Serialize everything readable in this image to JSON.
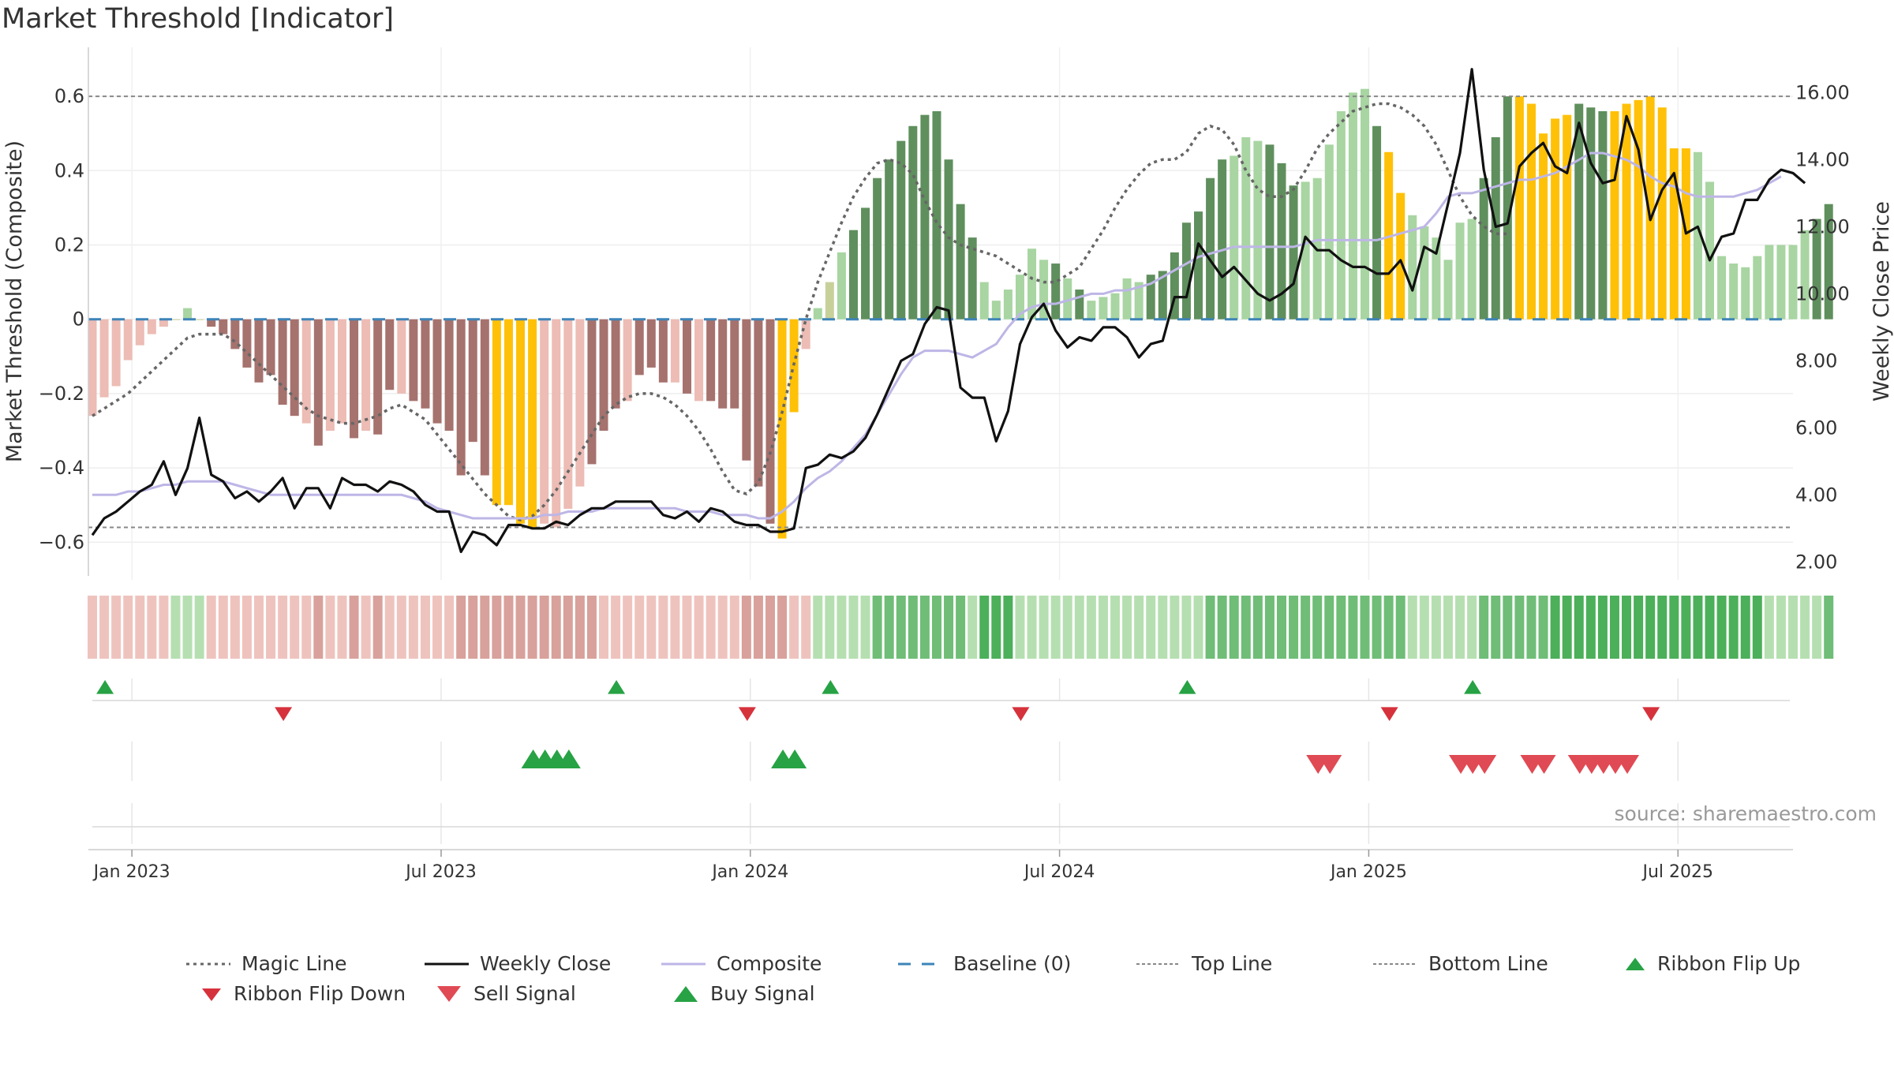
{
  "title": "Market Threshold [Indicator]",
  "source": "source: sharemaestro.com",
  "colors": {
    "magic": "#666666",
    "close": "#111111",
    "composite": "#bdb6e6",
    "baseline": "#3d84b8",
    "threshold_lines": "#888888",
    "dark_green": "#5f8f5d",
    "light_green": "#a8d5a2",
    "dark_red": "#a6726e",
    "light_red": "#ecbcb5",
    "gold": "#ffc107",
    "signal_green": "#27a244",
    "signal_red": "#d6323c"
  },
  "chart_data": {
    "type": "bar",
    "x_ticks": [
      {
        "label": "Jan 2023",
        "week": 2
      },
      {
        "label": "Jul 2023",
        "week": 28
      },
      {
        "label": "Jan 2024",
        "week": 54
      },
      {
        "label": "Jul 2024",
        "week": 80
      },
      {
        "label": "Jan 2025",
        "week": 106
      },
      {
        "label": "Jul 2025",
        "week": 132
      }
    ],
    "y_left": {
      "label": "Market Threshold (Composite)",
      "min": -0.68,
      "max": 0.7,
      "ticks": [
        {
          "v": 0.6,
          "t": "0.6"
        },
        {
          "v": 0.4,
          "t": "0.4"
        },
        {
          "v": 0.2,
          "t": "0.2"
        },
        {
          "v": 0,
          "t": "0"
        },
        {
          "v": -0.2,
          "t": "−0.2"
        },
        {
          "v": -0.4,
          "t": "−0.4"
        },
        {
          "v": -0.6,
          "t": "−0.6"
        }
      ]
    },
    "y_right": {
      "label": "Weekly Close Price",
      "min": 1.7,
      "max": 17.0,
      "ticks": [
        {
          "v": 16,
          "t": "16.00"
        },
        {
          "v": 14,
          "t": "14.00"
        },
        {
          "v": 12,
          "t": "12.00"
        },
        {
          "v": 10,
          "t": "10.00"
        },
        {
          "v": 8,
          "t": "8.00"
        },
        {
          "v": 6,
          "t": "6.00"
        },
        {
          "v": 4,
          "t": "4.00"
        },
        {
          "v": 2,
          "t": "2.00"
        }
      ]
    },
    "top_line": 0.6,
    "bottom_line": -0.56,
    "baseline": 0,
    "grid": true,
    "composite": [
      -0.26,
      -0.21,
      -0.18,
      -0.11,
      -0.07,
      -0.04,
      -0.02,
      0,
      0.03,
      0,
      -0.02,
      -0.04,
      -0.08,
      -0.13,
      -0.17,
      -0.15,
      -0.23,
      -0.26,
      -0.28,
      -0.34,
      -0.3,
      -0.28,
      -0.32,
      -0.3,
      -0.31,
      -0.19,
      -0.2,
      -0.22,
      -0.24,
      -0.28,
      -0.3,
      -0.42,
      -0.33,
      -0.42,
      -0.5,
      -0.5,
      -0.55,
      -0.56,
      -0.55,
      -0.56,
      -0.51,
      -0.45,
      -0.39,
      -0.3,
      -0.24,
      -0.22,
      -0.15,
      -0.13,
      -0.17,
      -0.17,
      -0.2,
      -0.22,
      -0.22,
      -0.24,
      -0.24,
      -0.38,
      -0.45,
      -0.55,
      -0.59,
      -0.25,
      -0.08,
      0.03,
      0.1,
      0.18,
      0.24,
      0.3,
      0.38,
      0.43,
      0.48,
      0.52,
      0.55,
      0.56,
      0.43,
      0.31,
      0.22,
      0.1,
      0.05,
      0.08,
      0.12,
      0.19,
      0.16,
      0.15,
      0.11,
      0.08,
      0.05,
      0.06,
      0.07,
      0.11,
      0.1,
      0.12,
      0.13,
      0.18,
      0.26,
      0.29,
      0.38,
      0.43,
      0.44,
      0.49,
      0.48,
      0.47,
      0.42,
      0.36,
      0.37,
      0.38,
      0.47,
      0.56,
      0.61,
      0.62,
      0.52,
      0.45,
      0.34,
      0.28,
      0.25,
      0.22,
      0.16,
      0.26,
      0.27,
      0.38,
      0.49,
      0.6,
      0.6,
      0.58,
      0.5,
      0.54,
      0.55,
      0.58,
      0.57,
      0.56,
      0.56,
      0.58,
      0.59,
      0.6,
      0.57,
      0.46,
      0.46,
      0.45,
      0.37,
      0.17,
      0.15,
      0.14,
      0.17,
      0.2,
      0.2,
      0.2,
      0.24,
      0.27,
      0.31
    ],
    "bar_colors": "RRRRRRRSGSDDDDDDDDRDRRDRDDRDDDDDDDYYYYRRRRDDDRDDDRDRDDDDDDYYRRSGDDDDDDDDDDDLLLLLLDLDLLLLLDDDDDDDLLLDDDLLLLLLDYYLLLLLLDDDYYYYYDDDYYYYYYYLLLLLLLLLLDDDDD",
    "weekly_close": [
      2.8,
      3.3,
      3.5,
      3.8,
      4.1,
      4.3,
      5.0,
      4.0,
      4.8,
      6.3,
      4.6,
      4.4,
      3.9,
      4.1,
      3.8,
      4.1,
      4.5,
      3.6,
      4.2,
      4.2,
      3.6,
      4.5,
      4.3,
      4.3,
      4.1,
      4.4,
      4.3,
      4.1,
      3.7,
      3.5,
      3.5,
      2.3,
      2.9,
      2.8,
      2.5,
      3.1,
      3.1,
      3.0,
      3.0,
      3.2,
      3.1,
      3.4,
      3.6,
      3.6,
      3.8,
      3.8,
      3.8,
      3.8,
      3.4,
      3.3,
      3.5,
      3.2,
      3.6,
      3.5,
      3.2,
      3.1,
      3.1,
      2.9,
      2.9,
      3.0,
      4.8,
      4.9,
      5.2,
      5.1,
      5.3,
      5.7,
      6.4,
      7.2,
      8.0,
      8.2,
      9.1,
      9.6,
      9.5,
      7.2,
      6.9,
      6.9,
      5.6,
      6.5,
      8.5,
      9.3,
      9.7,
      8.9,
      8.4,
      8.7,
      8.6,
      9.0,
      9.0,
      8.7,
      8.1,
      8.5,
      8.6,
      9.9,
      9.9,
      11.5,
      11.0,
      10.5,
      10.8,
      10.4,
      10.0,
      9.8,
      10.0,
      10.3,
      11.7,
      11.3,
      11.3,
      11.0,
      10.8,
      10.8,
      10.6,
      10.6,
      11.0,
      10.1,
      11.4,
      11.2,
      12.7,
      14.2,
      16.7,
      13.7,
      12.0,
      12.1,
      13.8,
      14.2,
      14.5,
      13.8,
      13.6,
      15.1,
      13.9,
      13.3,
      13.4,
      15.3,
      14.3,
      12.2,
      13.1,
      13.6,
      11.8,
      12.0,
      11.0,
      11.7,
      11.8,
      12.8,
      12.8,
      13.4,
      13.7,
      13.6,
      13.3
    ],
    "composite_line": [
      4.0,
      4.0,
      4.0,
      4.1,
      4.1,
      4.2,
      4.3,
      4.3,
      4.4,
      4.4,
      4.4,
      4.4,
      4.3,
      4.2,
      4.1,
      4.0,
      4.0,
      4.0,
      4.0,
      4.0,
      4.0,
      4.0,
      4.0,
      4.0,
      4.0,
      4.0,
      4.0,
      3.9,
      3.8,
      3.6,
      3.5,
      3.4,
      3.3,
      3.3,
      3.3,
      3.3,
      3.3,
      3.3,
      3.4,
      3.4,
      3.5,
      3.5,
      3.5,
      3.6,
      3.6,
      3.6,
      3.6,
      3.6,
      3.6,
      3.6,
      3.5,
      3.5,
      3.5,
      3.4,
      3.4,
      3.4,
      3.3,
      3.3,
      3.5,
      3.8,
      4.2,
      4.5,
      4.7,
      5.0,
      5.4,
      5.8,
      6.4,
      7.0,
      7.6,
      8.1,
      8.3,
      8.3,
      8.3,
      8.2,
      8.1,
      8.3,
      8.5,
      9.0,
      9.4,
      9.6,
      9.7,
      9.7,
      9.8,
      9.9,
      10.0,
      10.0,
      10.1,
      10.1,
      10.2,
      10.3,
      10.5,
      10.7,
      10.9,
      11.1,
      11.2,
      11.3,
      11.4,
      11.4,
      11.4,
      11.4,
      11.4,
      11.4,
      11.5,
      11.6,
      11.6,
      11.6,
      11.6,
      11.6,
      11.6,
      11.7,
      11.8,
      11.9,
      12.0,
      12.4,
      12.9,
      13.0,
      13.0,
      13.1,
      13.2,
      13.3,
      13.4,
      13.4,
      13.5,
      13.6,
      13.8,
      14.0,
      14.2,
      14.2,
      14.1,
      14.0,
      13.8,
      13.5,
      13.3,
      13.2,
      13.0,
      12.9,
      12.9,
      12.9,
      12.9,
      13.0,
      13.1,
      13.3,
      13.5
    ],
    "magic_line": [
      -0.26,
      -0.24,
      -0.22,
      -0.2,
      -0.17,
      -0.14,
      -0.11,
      -0.08,
      -0.05,
      -0.04,
      -0.04,
      -0.04,
      -0.06,
      -0.09,
      -0.12,
      -0.15,
      -0.18,
      -0.21,
      -0.24,
      -0.26,
      -0.27,
      -0.28,
      -0.28,
      -0.27,
      -0.26,
      -0.24,
      -0.23,
      -0.25,
      -0.27,
      -0.31,
      -0.35,
      -0.39,
      -0.43,
      -0.47,
      -0.5,
      -0.53,
      -0.54,
      -0.53,
      -0.5,
      -0.46,
      -0.41,
      -0.36,
      -0.31,
      -0.26,
      -0.23,
      -0.21,
      -0.2,
      -0.2,
      -0.21,
      -0.23,
      -0.26,
      -0.3,
      -0.35,
      -0.41,
      -0.46,
      -0.47,
      -0.44,
      -0.36,
      -0.25,
      -0.12,
      0.0,
      0.1,
      0.18,
      0.26,
      0.33,
      0.38,
      0.42,
      0.43,
      0.42,
      0.39,
      0.32,
      0.26,
      0.22,
      0.2,
      0.19,
      0.18,
      0.17,
      0.15,
      0.13,
      0.11,
      0.1,
      0.1,
      0.12,
      0.14,
      0.19,
      0.24,
      0.3,
      0.35,
      0.39,
      0.42,
      0.43,
      0.43,
      0.45,
      0.5,
      0.52,
      0.51,
      0.47,
      0.4,
      0.35,
      0.33,
      0.33,
      0.35,
      0.4,
      0.46,
      0.5,
      0.53,
      0.56,
      0.57,
      0.58,
      0.58,
      0.57,
      0.55,
      0.52,
      0.47,
      0.4,
      0.33,
      0.28,
      0.25,
      0.23,
      0.23
    ],
    "ribbon": "LLMMMMMMMMMMMMMMLLMMMMMMMMMMMMMMMMRRRMMMMMMMMMMMMMMMMMMMMMMMMMMMMMMMMMMMMMMRRRMMMMMLLLLLLLLLLLLLLMMMMMMMMMMMMMMMMMMMMMMMMMMRRRRRRRRRRRRRRRRRRMMMMLLLMMMMMLLLLLLLLMMMMMMMMMMMMMMMMM",
    "ribbon_flip_up_weeks": [
      1,
      44,
      62,
      92,
      116
    ],
    "ribbon_flip_down_weeks": [
      16,
      55,
      78,
      109,
      131
    ],
    "buy_signal_weeks": [
      37,
      38,
      39,
      40,
      58,
      59
    ],
    "sell_signal_weeks": [
      103,
      104,
      115,
      116,
      117,
      121,
      122,
      125,
      126,
      127,
      128,
      129
    ],
    "legend": [
      "Magic Line",
      "Weekly Close",
      "Composite",
      "Baseline (0)",
      "Top Line",
      "Bottom Line",
      "Ribbon Flip Up",
      "Ribbon Flip Down",
      "Sell Signal",
      "Buy Signal"
    ]
  }
}
